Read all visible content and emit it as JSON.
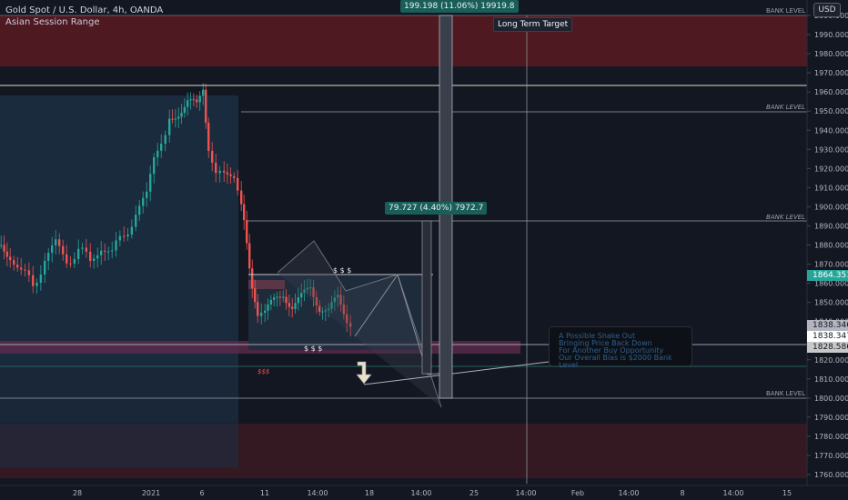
{
  "header": {
    "symbol": "Gold Spot / U.S. Dollar, 4h, OANDA",
    "indicator": "Asian Session Range"
  },
  "currency_button": "USD",
  "price_axis": {
    "ticks": [
      "2000.000",
      "1990.000",
      "1980.000",
      "1970.000",
      "1960.000",
      "1950.000",
      "1940.000",
      "1930.000",
      "1920.000",
      "1910.000",
      "1900.000",
      "1890.000",
      "1880.000",
      "1870.000",
      "1860.000",
      "1850.000",
      "1840.000",
      "1830.000",
      "1820.000",
      "1810.000",
      "1800.000",
      "1790.000",
      "1780.000",
      "1770.000",
      "1760.000"
    ],
    "min": 1756,
    "max": 2005
  },
  "price_labels": [
    {
      "value": "1864.351",
      "bg": "#26a69a",
      "fg": "#ffffff"
    },
    {
      "value": "1838.346",
      "bg": "#b2b5be",
      "fg": "#131722"
    },
    {
      "value": "1838.347",
      "bg": "#ffffff",
      "fg": "#131722"
    },
    {
      "value": "1828.586",
      "bg": "#c8c8c8",
      "fg": "#131722"
    }
  ],
  "time_axis": [
    "28",
    "2021",
    "6",
    "11",
    "14:00",
    "18",
    "14:00",
    "25",
    "14:00",
    "Feb",
    "14:00",
    "8",
    "14:00",
    "15"
  ],
  "bank_levels": [
    {
      "label": "BANK LEVEL",
      "price": 2000
    },
    {
      "label": "BANK LEVEL",
      "price": 1950
    },
    {
      "label": "BANK LEVEL",
      "price": 1893
    },
    {
      "label": "BANK LEVEL",
      "price": 1800
    }
  ],
  "measure_tags": [
    {
      "text": "199.198 (11.06%) 19919.8"
    },
    {
      "text": "79.727 (4.40%) 7972.7"
    }
  ],
  "long_term_target": "Long Term Target",
  "liquidity_labels": [
    "$ $ $",
    "$ $ $",
    "$$$"
  ],
  "note_lines": [
    "A Possible Shake Out",
    "Bringing Price Back Down",
    "For Another Buy Opportunity",
    "Our Overall Bias is $2000 Bank Level"
  ],
  "colors": {
    "background": "#131722",
    "up": "#26a69a",
    "down": "#ef5350",
    "supply_zone": "#6b1f28",
    "session_box": "#1c2d40"
  }
}
